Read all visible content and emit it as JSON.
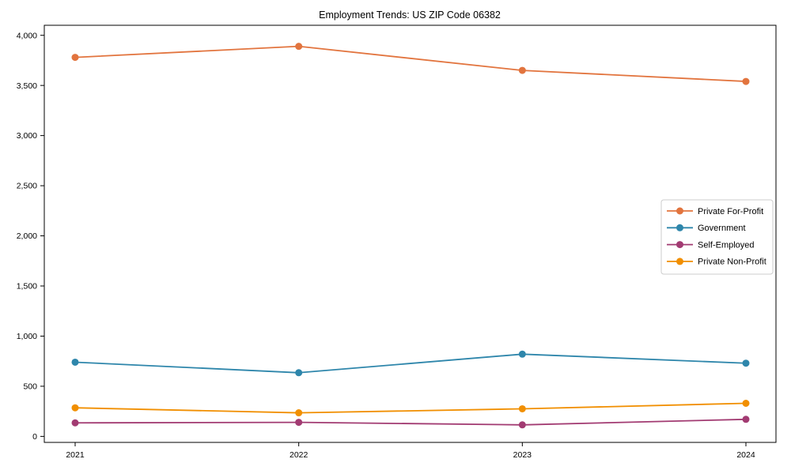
{
  "chart_data": {
    "type": "line",
    "title": "Employment Trends: US ZIP Code 06382",
    "categories": [
      "2021",
      "2022",
      "2023",
      "2024"
    ],
    "series": [
      {
        "name": "Private For-Profit",
        "color": "#E2743E",
        "values": [
          3780,
          3890,
          3650,
          3540
        ]
      },
      {
        "name": "Government",
        "color": "#2E86AB",
        "values": [
          740,
          635,
          820,
          730
        ]
      },
      {
        "name": "Self-Employed",
        "color": "#A23B72",
        "values": [
          135,
          140,
          115,
          170
        ]
      },
      {
        "name": "Private Non-Profit",
        "color": "#F18F01",
        "values": [
          285,
          235,
          275,
          330
        ]
      }
    ],
    "xlabel": "",
    "ylabel": "",
    "ylim": [
      -60,
      4100
    ],
    "yticks": [
      0,
      500,
      1000,
      1500,
      2000,
      2500,
      3000,
      3500,
      4000
    ],
    "ytick_format": "comma",
    "grid": false,
    "legend": {
      "position": "middle-right",
      "border_color": "#cccccc",
      "background": "#ffffff"
    },
    "axis_color": "#000000",
    "background": "#ffffff"
  }
}
